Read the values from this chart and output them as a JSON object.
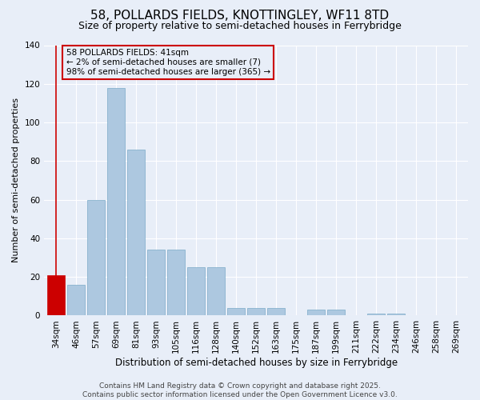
{
  "title": "58, POLLARDS FIELDS, KNOTTINGLEY, WF11 8TD",
  "subtitle": "Size of property relative to semi-detached houses in Ferrybridge",
  "xlabel": "Distribution of semi-detached houses by size in Ferrybridge",
  "ylabel": "Number of semi-detached properties",
  "categories": [
    "34sqm",
    "46sqm",
    "57sqm",
    "69sqm",
    "81sqm",
    "93sqm",
    "105sqm",
    "116sqm",
    "128sqm",
    "140sqm",
    "152sqm",
    "163sqm",
    "175sqm",
    "187sqm",
    "199sqm",
    "211sqm",
    "222sqm",
    "234sqm",
    "246sqm",
    "258sqm",
    "269sqm"
  ],
  "values": [
    21,
    16,
    60,
    118,
    86,
    34,
    34,
    25,
    25,
    4,
    4,
    4,
    0,
    3,
    3,
    0,
    1,
    1,
    0,
    0,
    0
  ],
  "bar_color": "#adc8e0",
  "bar_edge_color": "#7aaac8",
  "highlight_bar_index": 0,
  "highlight_color": "#cc0000",
  "annotation_box_text": "58 POLLARDS FIELDS: 41sqm\n← 2% of semi-detached houses are smaller (7)\n98% of semi-detached houses are larger (365) →",
  "annotation_box_color": "#cc0000",
  "ylim": [
    0,
    140
  ],
  "yticks": [
    0,
    20,
    40,
    60,
    80,
    100,
    120,
    140
  ],
  "background_color": "#e8eef8",
  "grid_color": "#ffffff",
  "footer_text": "Contains HM Land Registry data © Crown copyright and database right 2025.\nContains public sector information licensed under the Open Government Licence v3.0.",
  "title_fontsize": 11,
  "subtitle_fontsize": 9,
  "xlabel_fontsize": 8.5,
  "ylabel_fontsize": 8,
  "tick_fontsize": 7.5,
  "annotation_fontsize": 7.5,
  "footer_fontsize": 6.5
}
